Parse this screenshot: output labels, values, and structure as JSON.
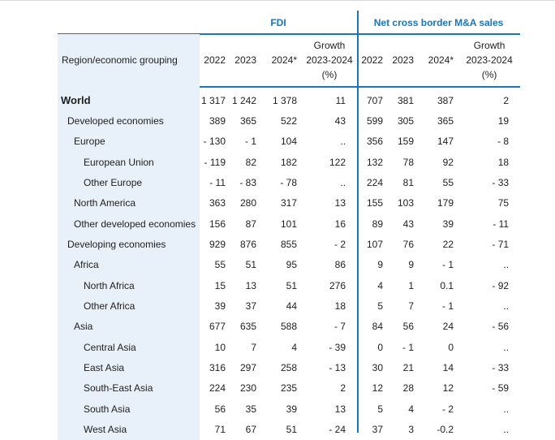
{
  "header": {
    "group_fdi": "FDI",
    "group_ma": "Net cross border M&A sales",
    "region_label": "Region/economic grouping",
    "years": [
      "2022",
      "2023",
      "2024*"
    ],
    "growth_line1": "Growth",
    "growth_line2": "2023-2024",
    "growth_line3": "(%)"
  },
  "rows": [
    {
      "label": "World",
      "fdi": [
        "1 317",
        "1 242",
        "1 378",
        "11"
      ],
      "ma": [
        "707",
        "381",
        "387",
        "2"
      ]
    },
    {
      "label": "Developed economies",
      "fdi": [
        "389",
        "365",
        "522",
        "43"
      ],
      "ma": [
        "599",
        "305",
        "365",
        "19"
      ]
    },
    {
      "label": "Europe",
      "fdi": [
        "- 130",
        "- 1",
        "104",
        ".."
      ],
      "ma": [
        "356",
        "159",
        "147",
        "- 8"
      ]
    },
    {
      "label": "European Union",
      "fdi": [
        "- 119",
        "82",
        "182",
        "122"
      ],
      "ma": [
        "132",
        "78",
        "92",
        "18"
      ]
    },
    {
      "label": "Other Europe",
      "fdi": [
        "- 11",
        "- 83",
        "- 78",
        ".."
      ],
      "ma": [
        "224",
        "81",
        "55",
        "- 33"
      ]
    },
    {
      "label": "North America",
      "fdi": [
        "363",
        "280",
        "317",
        "13"
      ],
      "ma": [
        "155",
        "103",
        "179",
        "75"
      ]
    },
    {
      "label": "Other developed economies",
      "fdi": [
        "156",
        "87",
        "101",
        "16"
      ],
      "ma": [
        "89",
        "43",
        "39",
        "- 11"
      ]
    },
    {
      "label": "Developing economies",
      "fdi": [
        "929",
        "876",
        "855",
        "- 2"
      ],
      "ma": [
        "107",
        "76",
        "22",
        "- 71"
      ]
    },
    {
      "label": "Africa",
      "fdi": [
        "55",
        "51",
        "95",
        "86"
      ],
      "ma": [
        "9",
        "9",
        "- 1",
        ".."
      ]
    },
    {
      "label": "North Africa",
      "fdi": [
        "15",
        "13",
        "51",
        "276"
      ],
      "ma": [
        "4",
        "1",
        "0.1",
        "- 92"
      ]
    },
    {
      "label": "Other Africa",
      "fdi": [
        "39",
        "37",
        "44",
        "18"
      ],
      "ma": [
        "5",
        "7",
        "- 1",
        ".."
      ]
    },
    {
      "label": "Asia",
      "fdi": [
        "677",
        "635",
        "588",
        "- 7"
      ],
      "ma": [
        "84",
        "56",
        "24",
        "- 56"
      ]
    },
    {
      "label": "Central Asia",
      "fdi": [
        "10",
        "7",
        "4",
        "- 39"
      ],
      "ma": [
        "0",
        "- 1",
        "0",
        ".."
      ]
    },
    {
      "label": "East Asia",
      "fdi": [
        "316",
        "297",
        "258",
        "- 13"
      ],
      "ma": [
        "30",
        "21",
        "14",
        "- 33"
      ]
    },
    {
      "label": "South-East Asia",
      "fdi": [
        "224",
        "230",
        "235",
        "2"
      ],
      "ma": [
        "12",
        "28",
        "12",
        "- 59"
      ]
    },
    {
      "label": "South Asia",
      "fdi": [
        "56",
        "35",
        "39",
        "13"
      ],
      "ma": [
        "5",
        "4",
        "- 2",
        ".."
      ]
    },
    {
      "label": "West Asia",
      "fdi": [
        "71",
        "67",
        "51",
        "- 24"
      ],
      "ma": [
        "37",
        "3",
        "-0.2",
        ".."
      ]
    }
  ]
}
